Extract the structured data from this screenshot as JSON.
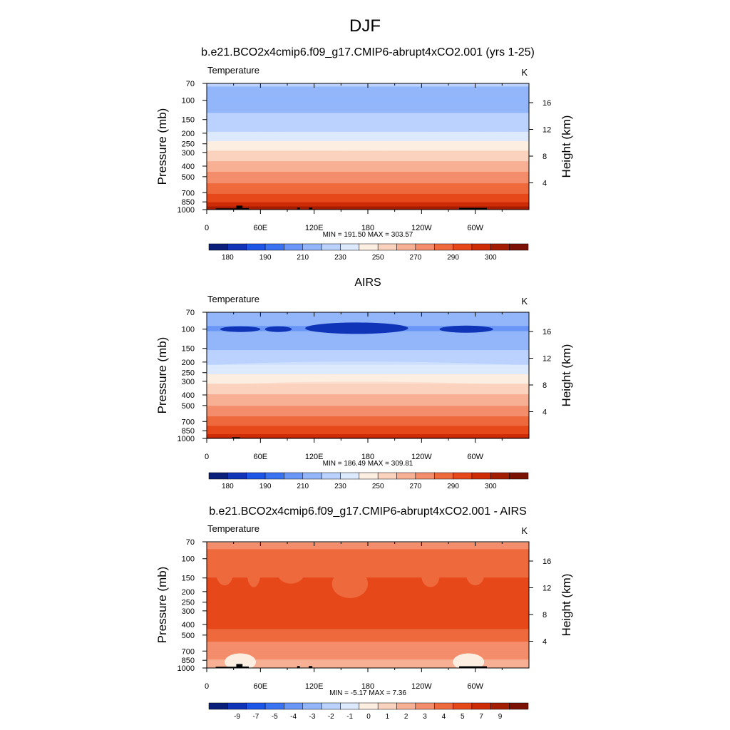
{
  "figure": {
    "title": "DJF"
  },
  "colors": {
    "temperature_levels": [
      "#0a1f7a",
      "#0f34b8",
      "#1d55e6",
      "#3a73f2",
      "#6a97f7",
      "#93b6fb",
      "#bad2fd",
      "#dde9fd",
      "#fdeee2",
      "#fbd2bd",
      "#f8b095",
      "#f48d6b",
      "#ee6a3d",
      "#e7481a",
      "#cd2c06",
      "#a31d03",
      "#7a1102"
    ],
    "difference_levels": [
      "#0a1f7a",
      "#0f34b8",
      "#1d55e6",
      "#3a73f2",
      "#6a97f7",
      "#93b6fb",
      "#bad2fd",
      "#dde9fd",
      "#fdeee2",
      "#fbd2bd",
      "#f8b095",
      "#f48d6b",
      "#ee6a3d",
      "#e7481a",
      "#cd2c06",
      "#a31d03",
      "#7a1102"
    ],
    "land": "#000000"
  },
  "chart_data": [
    {
      "type": "heatmap",
      "title": "b.e21.BCO2x4cmip6.f09_g17.CMIP6-abrupt4xCO2.001 (yrs 1-25)",
      "left_label": "Temperature",
      "right_label": "K",
      "ylabel": "Pressure (mb)",
      "right_ylabel": "Height (km)",
      "x_ticks": [
        "0",
        "60E",
        "120E",
        "180",
        "120W",
        "60W"
      ],
      "x_tick_values": [
        0,
        60,
        120,
        180,
        240,
        300
      ],
      "xlim": [
        0,
        360
      ],
      "y_ticks": [
        "70",
        "100",
        "150",
        "200",
        "250",
        "300",
        "400",
        "500",
        "700",
        "850",
        "1000"
      ],
      "y_tick_values": [
        70,
        100,
        150,
        200,
        250,
        300,
        400,
        500,
        700,
        850,
        1000
      ],
      "ylim": [
        1000,
        70
      ],
      "height_ticks": [
        "4",
        "8",
        "12",
        "16"
      ],
      "height_tick_values": [
        4,
        8,
        12,
        16
      ],
      "stats": "MIN = 191.50  MAX = 303.57",
      "min": 191.5,
      "max": 303.57,
      "colorbar_labels": [
        "180",
        "190",
        "210",
        "230",
        "250",
        "270",
        "290",
        "300"
      ],
      "colorbar_label_slots": [
        1,
        3,
        5,
        7,
        9,
        11,
        13,
        15
      ],
      "colorbar_levels": 17,
      "profile": [
        {
          "p": 70,
          "v": 212
        },
        {
          "p": 80,
          "v": 208
        },
        {
          "p": 100,
          "v": 205
        },
        {
          "p": 120,
          "v": 208
        },
        {
          "p": 150,
          "v": 213
        },
        {
          "p": 200,
          "v": 221
        },
        {
          "p": 250,
          "v": 232
        },
        {
          "p": 300,
          "v": 242
        },
        {
          "p": 400,
          "v": 254
        },
        {
          "p": 500,
          "v": 264
        },
        {
          "p": 600,
          "v": 272
        },
        {
          "p": 700,
          "v": 279
        },
        {
          "p": 850,
          "v": 289
        },
        {
          "p": 925,
          "v": 294
        },
        {
          "p": 1000,
          "v": 298
        }
      ],
      "land": [
        {
          "lon0": 10,
          "lon1": 33,
          "p": 975
        },
        {
          "lon0": 33,
          "lon1": 40,
          "p": 920
        },
        {
          "lon0": 40,
          "lon1": 47,
          "p": 970
        },
        {
          "lon0": 101,
          "lon1": 104,
          "p": 960
        },
        {
          "lon0": 114,
          "lon1": 118,
          "p": 960
        },
        {
          "lon0": 282,
          "lon1": 313,
          "p": 965
        }
      ]
    },
    {
      "type": "heatmap",
      "title": "AIRS",
      "left_label": "Temperature",
      "right_label": "K",
      "ylabel": "Pressure (mb)",
      "right_ylabel": "Height (km)",
      "x_ticks": [
        "0",
        "60E",
        "120E",
        "180",
        "120W",
        "60W"
      ],
      "x_tick_values": [
        0,
        60,
        120,
        180,
        240,
        300
      ],
      "xlim": [
        0,
        360
      ],
      "y_ticks": [
        "70",
        "100",
        "150",
        "200",
        "250",
        "300",
        "400",
        "500",
        "700",
        "850",
        "1000"
      ],
      "y_tick_values": [
        70,
        100,
        150,
        200,
        250,
        300,
        400,
        500,
        700,
        850,
        1000
      ],
      "ylim": [
        1000,
        70
      ],
      "height_ticks": [
        "4",
        "8",
        "12",
        "16"
      ],
      "height_tick_values": [
        4,
        8,
        12,
        16
      ],
      "stats": "MIN = 186.49  MAX = 309.81",
      "min": 186.49,
      "max": 309.81,
      "colorbar_labels": [
        "180",
        "190",
        "210",
        "230",
        "250",
        "270",
        "290",
        "300"
      ],
      "colorbar_label_slots": [
        1,
        3,
        5,
        7,
        9,
        11,
        13,
        15
      ],
      "colorbar_levels": 17,
      "profile": [
        {
          "p": 70,
          "v": 207
        },
        {
          "p": 80,
          "v": 203
        },
        {
          "p": 100,
          "v": 199
        },
        {
          "p": 120,
          "v": 203
        },
        {
          "p": 150,
          "v": 209
        },
        {
          "p": 200,
          "v": 217
        },
        {
          "p": 250,
          "v": 228
        },
        {
          "p": 300,
          "v": 238
        },
        {
          "p": 400,
          "v": 250
        },
        {
          "p": 500,
          "v": 260
        },
        {
          "p": 600,
          "v": 268
        },
        {
          "p": 700,
          "v": 275
        },
        {
          "p": 850,
          "v": 285
        },
        {
          "p": 925,
          "v": 291
        },
        {
          "p": 1000,
          "v": 296
        }
      ],
      "cold_patches": [
        {
          "lon0": 15,
          "lon1": 60,
          "p": 100,
          "dp": 4
        },
        {
          "lon0": 65,
          "lon1": 95,
          "p": 100,
          "dp": 4
        },
        {
          "lon0": 110,
          "lon1": 225,
          "p": 98,
          "dp": 8
        },
        {
          "lon0": 260,
          "lon1": 320,
          "p": 100,
          "dp": 5
        }
      ],
      "land": [
        {
          "lon0": 28,
          "lon1": 37,
          "p": 975
        }
      ]
    },
    {
      "type": "heatmap",
      "title": "b.e21.BCO2x4cmip6.f09_g17.CMIP6-abrupt4xCO2.001 - AIRS",
      "left_label": "Temperature",
      "right_label": "K",
      "ylabel": "Pressure (mb)",
      "right_ylabel": "Height (km)",
      "x_ticks": [
        "0",
        "60E",
        "120E",
        "180",
        "120W",
        "60W"
      ],
      "x_tick_values": [
        0,
        60,
        120,
        180,
        240,
        300
      ],
      "xlim": [
        0,
        360
      ],
      "y_ticks": [
        "70",
        "100",
        "150",
        "200",
        "250",
        "300",
        "400",
        "500",
        "700",
        "850",
        "1000"
      ],
      "y_tick_values": [
        70,
        100,
        150,
        200,
        250,
        300,
        400,
        500,
        700,
        850,
        1000
      ],
      "ylim": [
        1000,
        70
      ],
      "height_ticks": [
        "4",
        "8",
        "12",
        "16"
      ],
      "height_tick_values": [
        4,
        8,
        12,
        16
      ],
      "stats": "MIN =  -5.17  MAX =   7.36",
      "min": -5.17,
      "max": 7.36,
      "colorbar_labels": [
        "-9",
        "-7",
        "-5",
        "-4",
        "-3",
        "-2",
        "-1",
        "0",
        "1",
        "2",
        "3",
        "4",
        "5",
        "7",
        "9"
      ],
      "colorbar_label_slots": [
        1,
        2,
        3,
        4,
        5,
        6,
        7,
        8,
        9,
        10,
        11,
        12,
        13,
        14,
        15
      ],
      "colorbar_levels": 17,
      "profile": [
        {
          "p": 70,
          "v": 2.5
        },
        {
          "p": 75,
          "v": 3.5
        },
        {
          "p": 85,
          "v": 4.2
        },
        {
          "p": 100,
          "v": 4.6
        },
        {
          "p": 150,
          "v": 5.0
        },
        {
          "p": 200,
          "v": 5.2
        },
        {
          "p": 250,
          "v": 5.5
        },
        {
          "p": 300,
          "v": 5.6
        },
        {
          "p": 400,
          "v": 5.3
        },
        {
          "p": 500,
          "v": 4.6
        },
        {
          "p": 600,
          "v": 3.8
        },
        {
          "p": 700,
          "v": 3.4
        },
        {
          "p": 850,
          "v": 3.0
        },
        {
          "p": 1000,
          "v": 2.6
        }
      ],
      "warm_patches": [
        {
          "lon0": 10,
          "lon1": 30,
          "p": 130,
          "dp": 40
        },
        {
          "lon0": 45,
          "lon1": 60,
          "p": 135,
          "dp": 40
        },
        {
          "lon0": 78,
          "lon1": 110,
          "p": 130,
          "dp": 35
        },
        {
          "lon0": 105,
          "lon1": 125,
          "p": 110,
          "dp": 15
        },
        {
          "lon0": 140,
          "lon1": 180,
          "p": 170,
          "dp": 40
        },
        {
          "lon0": 240,
          "lon1": 260,
          "p": 145,
          "dp": 30
        },
        {
          "lon0": 290,
          "lon1": 310,
          "p": 140,
          "dp": 30
        }
      ],
      "land": [
        {
          "lon0": 10,
          "lon1": 33,
          "p": 975
        },
        {
          "lon0": 33,
          "lon1": 40,
          "p": 920
        },
        {
          "lon0": 40,
          "lon1": 47,
          "p": 970
        },
        {
          "lon0": 101,
          "lon1": 104,
          "p": 960
        },
        {
          "lon0": 114,
          "lon1": 118,
          "p": 960
        },
        {
          "lon0": 282,
          "lon1": 313,
          "p": 965
        }
      ]
    }
  ]
}
